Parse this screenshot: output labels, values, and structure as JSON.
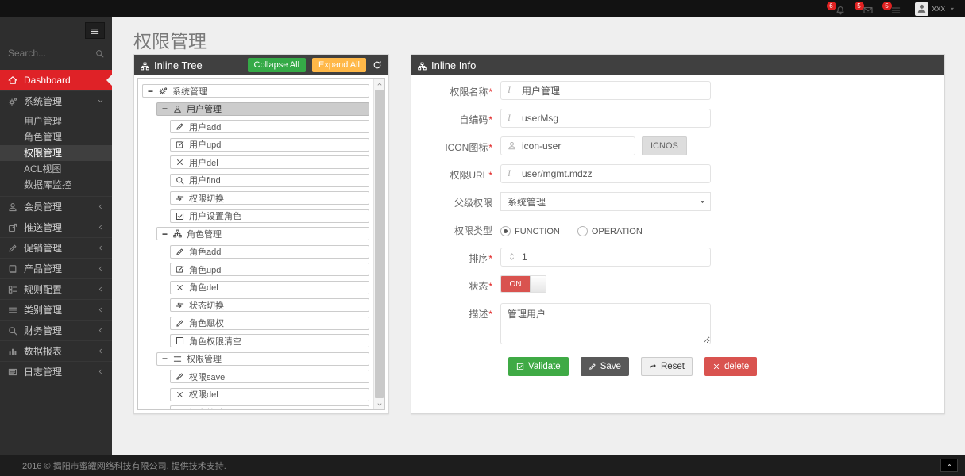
{
  "topbar": {
    "notifications": [
      {
        "icon": "bell-icon",
        "count": "6"
      },
      {
        "icon": "envelope-icon",
        "count": "5"
      },
      {
        "icon": "tasks-icon",
        "count": "5"
      }
    ],
    "user": {
      "name": "xxx"
    }
  },
  "sidebar": {
    "search_placeholder": "Search...",
    "items": [
      {
        "id": "dashboard",
        "label": "Dashboard",
        "icon": "home-icon",
        "active": true
      },
      {
        "id": "system",
        "label": "系统管理",
        "icon": "gears-icon",
        "chevron": "down",
        "expanded": true,
        "children": [
          {
            "label": "用户管理"
          },
          {
            "label": "角色管理"
          },
          {
            "label": "权限管理",
            "selected": true
          },
          {
            "label": "ACL视图"
          },
          {
            "label": "数据库监控"
          }
        ]
      },
      {
        "id": "member",
        "label": "会员管理",
        "icon": "member-icon",
        "chevron": "left"
      },
      {
        "id": "push",
        "label": "推送管理",
        "icon": "push-icon",
        "chevron": "left"
      },
      {
        "id": "promo",
        "label": "促销管理",
        "icon": "promo-icon",
        "chevron": "left"
      },
      {
        "id": "product",
        "label": "产品管理",
        "icon": "product-icon",
        "chevron": "left"
      },
      {
        "id": "rules",
        "label": "规则配置",
        "icon": "rules-icon",
        "chevron": "left"
      },
      {
        "id": "category",
        "label": "类别管理",
        "icon": "category-icon",
        "chevron": "left"
      },
      {
        "id": "finance",
        "label": "财务管理",
        "icon": "finance-icon",
        "chevron": "left"
      },
      {
        "id": "report",
        "label": "数据报表",
        "icon": "report-icon",
        "chevron": "left"
      },
      {
        "id": "log",
        "label": "日志管理",
        "icon": "log-icon",
        "chevron": "left"
      }
    ]
  },
  "page": {
    "title": "权限管理"
  },
  "tree_panel": {
    "title": "Inline Tree",
    "collapse_all_label": "Collapse All",
    "expand_all_label": "Expand All",
    "collapse_btn_color": "#35aa47",
    "expand_btn_color": "#ffb848",
    "nodes": [
      {
        "level": 0,
        "group": true,
        "icon": "gears-icon",
        "label": "系统管理"
      },
      {
        "level": 1,
        "group": true,
        "icon": "user-icon",
        "label": "用户管理",
        "selected": true
      },
      {
        "level": 2,
        "icon": "pencil-icon",
        "label": "用户add"
      },
      {
        "level": 2,
        "icon": "edit-icon",
        "label": "用户upd"
      },
      {
        "level": 2,
        "icon": "x-icon",
        "label": "用户del"
      },
      {
        "level": 2,
        "icon": "search-icon",
        "label": "用户find"
      },
      {
        "level": 2,
        "icon": "retweet-icon",
        "label": "权限切换"
      },
      {
        "level": 2,
        "icon": "check-square-icon",
        "label": "用户设置角色"
      },
      {
        "level": 1,
        "group": true,
        "icon": "sitemap-icon",
        "label": "角色管理"
      },
      {
        "level": 2,
        "icon": "pencil-icon",
        "label": "角色add"
      },
      {
        "level": 2,
        "icon": "edit-icon",
        "label": "角色upd"
      },
      {
        "level": 2,
        "icon": "x-icon",
        "label": "角色del"
      },
      {
        "level": 2,
        "icon": "retweet-icon",
        "label": "状态切换"
      },
      {
        "level": 2,
        "icon": "pencil-icon",
        "label": "角色赋权"
      },
      {
        "level": 2,
        "icon": "square-icon",
        "label": "角色权限清空"
      },
      {
        "level": 1,
        "group": true,
        "icon": "list-icon",
        "label": "权限管理"
      },
      {
        "level": 2,
        "icon": "pencil-icon",
        "label": "权限save"
      },
      {
        "level": 2,
        "icon": "x-icon",
        "label": "权限del"
      },
      {
        "level": 2,
        "icon": "edit-icon",
        "label": "提交校验"
      }
    ]
  },
  "info_panel": {
    "title": "Inline Info",
    "fields": [
      {
        "name": "perm-name",
        "label": "权限名称",
        "required": true,
        "type": "text",
        "icon": "italic-icon",
        "value": "用户管理"
      },
      {
        "name": "perm-code",
        "label": "自编码",
        "required": true,
        "type": "text",
        "icon": "italic-icon",
        "value": "userMsg"
      },
      {
        "name": "perm-icon",
        "label": "ICON图标",
        "required": true,
        "type": "text-button",
        "icon": "user-icon",
        "value": "icon-user",
        "button_label": "ICNOS"
      },
      {
        "name": "perm-url",
        "label": "权限URL",
        "required": true,
        "type": "text",
        "icon": "italic-icon",
        "value": "user/mgmt.mdzz"
      },
      {
        "name": "parent-perm",
        "label": "父级权限",
        "required": false,
        "type": "select",
        "value": "系统管理"
      },
      {
        "name": "perm-type",
        "label": "权限类型",
        "required": false,
        "type": "radio",
        "options": [
          {
            "label": "FUNCTION",
            "checked": true
          },
          {
            "label": "OPERATION",
            "checked": false
          }
        ]
      },
      {
        "name": "sort-order",
        "label": "排序",
        "required": true,
        "type": "text",
        "icon": "sort-icon",
        "value": "1"
      },
      {
        "name": "status",
        "label": "状态",
        "required": true,
        "type": "toggle",
        "value": "ON",
        "on_color": "#d9534f"
      },
      {
        "name": "description",
        "label": "描述",
        "required": true,
        "type": "textarea",
        "value": "管理用户"
      }
    ],
    "buttons": [
      {
        "name": "validate-button",
        "label": "Validate",
        "icon": "check-square-icon",
        "style": "green",
        "color": "#3faa45"
      },
      {
        "name": "save-button",
        "label": "Save",
        "icon": "pencil-icon",
        "style": "dark",
        "color": "#595959"
      },
      {
        "name": "reset-button",
        "label": "Reset",
        "icon": "redo-icon",
        "style": "light",
        "color": "#f0f0f0"
      },
      {
        "name": "delete-button",
        "label": "delete",
        "icon": "x-icon",
        "style": "red",
        "color": "#d9534f"
      }
    ]
  },
  "footer": {
    "copyright": "2016 © 揭阳市蜜罐网络科技有限公司. 提供技术支持."
  },
  "colors": {
    "accent_red": "#df2227",
    "topbar_badge": "#e02222"
  }
}
